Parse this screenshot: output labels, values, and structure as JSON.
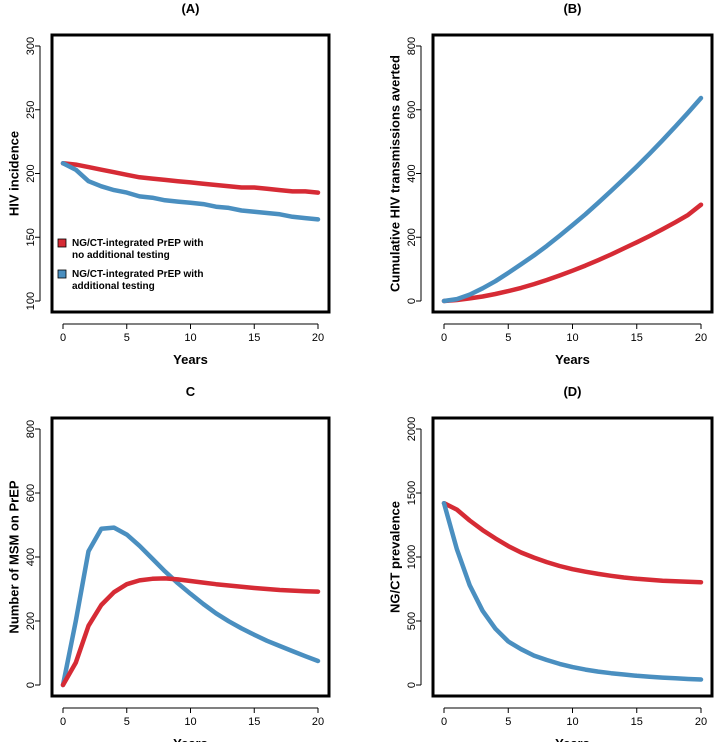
{
  "colors": {
    "red": "#d62b35",
    "blue": "#4a8fc0",
    "axis": "#000000"
  },
  "chart_data": [
    {
      "id": "A",
      "type": "line",
      "title": "(A)",
      "xlabel": "Years",
      "ylabel": "HIV incidence",
      "xlim": [
        0,
        20
      ],
      "ylim": [
        100,
        300
      ],
      "xticks": [
        0,
        5,
        10,
        15,
        20
      ],
      "yticks": [
        100,
        150,
        200,
        250,
        300
      ],
      "legend": {
        "placement": "bottom-left",
        "entries": [
          {
            "line1": "NG/CT-integrated PrEP with",
            "line2": "no additional testing",
            "color": "#d62b35"
          },
          {
            "line1": "NG/CT-integrated PrEP with",
            "line2": "additional testing",
            "color": "#4a8fc0"
          }
        ]
      },
      "series": [
        {
          "name": "NG/CT-integrated PrEP with no additional testing",
          "color": "#d62b35",
          "x": [
            0,
            1,
            2,
            3,
            4,
            5,
            6,
            7,
            8,
            9,
            10,
            11,
            12,
            13,
            14,
            15,
            16,
            17,
            18,
            19,
            20
          ],
          "values": [
            208,
            207,
            205,
            203,
            201,
            199,
            197,
            196,
            195,
            194,
            193,
            192,
            191,
            190,
            189,
            189,
            188,
            187,
            186,
            186,
            185
          ]
        },
        {
          "name": "NG/CT-integrated PrEP with additional testing",
          "color": "#4a8fc0",
          "x": [
            0,
            1,
            2,
            3,
            4,
            5,
            6,
            7,
            8,
            9,
            10,
            11,
            12,
            13,
            14,
            15,
            16,
            17,
            18,
            19,
            20
          ],
          "values": [
            208,
            203,
            194,
            190,
            187,
            185,
            182,
            181,
            179,
            178,
            177,
            176,
            174,
            173,
            171,
            170,
            169,
            168,
            166,
            165,
            164
          ]
        }
      ]
    },
    {
      "id": "B",
      "type": "line",
      "title": "(B)",
      "xlabel": "Years",
      "ylabel": "Cumulative HIV transmissions averted",
      "xlim": [
        0,
        20
      ],
      "ylim": [
        0,
        800
      ],
      "xticks": [
        0,
        5,
        10,
        15,
        20
      ],
      "yticks": [
        0,
        200,
        400,
        600,
        800
      ],
      "series": [
        {
          "name": "NG/CT-integrated PrEP with no additional testing",
          "color": "#d62b35",
          "x": [
            0,
            1,
            2,
            3,
            4,
            5,
            6,
            7,
            8,
            9,
            10,
            11,
            12,
            13,
            14,
            15,
            16,
            17,
            18,
            19,
            20
          ],
          "values": [
            0,
            3,
            8,
            14,
            22,
            31,
            41,
            53,
            66,
            80,
            95,
            111,
            128,
            146,
            165,
            184,
            204,
            225,
            247,
            270,
            302
          ]
        },
        {
          "name": "NG/CT-integrated PrEP with additional testing",
          "color": "#4a8fc0",
          "x": [
            0,
            1,
            2,
            3,
            4,
            5,
            6,
            7,
            8,
            9,
            10,
            11,
            12,
            13,
            14,
            15,
            16,
            17,
            18,
            19,
            20
          ],
          "values": [
            0,
            6,
            20,
            40,
            62,
            88,
            115,
            143,
            173,
            205,
            238,
            272,
            308,
            345,
            383,
            422,
            462,
            504,
            547,
            591,
            637
          ]
        }
      ]
    },
    {
      "id": "C",
      "type": "line",
      "title": "C",
      "xlabel": "Years",
      "ylabel": "Number of MSM on PrEP",
      "xlim": [
        0,
        20
      ],
      "ylim": [
        0,
        800
      ],
      "xticks": [
        0,
        5,
        10,
        15,
        20
      ],
      "yticks": [
        0,
        200,
        400,
        600,
        800
      ],
      "series": [
        {
          "name": "NG/CT-integrated PrEP with no additional testing",
          "color": "#d62b35",
          "x": [
            0,
            1,
            2,
            3,
            4,
            5,
            6,
            7,
            8,
            9,
            10,
            11,
            12,
            13,
            14,
            15,
            16,
            17,
            18,
            19,
            20
          ],
          "values": [
            0,
            70,
            185,
            250,
            290,
            315,
            327,
            332,
            333,
            330,
            325,
            320,
            315,
            311,
            307,
            303,
            300,
            297,
            295,
            293,
            292
          ]
        },
        {
          "name": "NG/CT-integrated PrEP with additional testing",
          "color": "#4a8fc0",
          "x": [
            0,
            1,
            2,
            3,
            4,
            5,
            6,
            7,
            8,
            9,
            10,
            11,
            12,
            13,
            14,
            15,
            16,
            17,
            18,
            19,
            20
          ],
          "values": [
            0,
            200,
            418,
            488,
            492,
            470,
            435,
            395,
            355,
            318,
            285,
            253,
            224,
            199,
            177,
            157,
            138,
            122,
            106,
            90,
            75
          ]
        }
      ]
    },
    {
      "id": "D",
      "type": "line",
      "title": "(D)",
      "xlabel": "Years",
      "ylabel": "NG/CT prevalence",
      "xlim": [
        0,
        20
      ],
      "ylim": [
        0,
        2000
      ],
      "xticks": [
        0,
        5,
        10,
        15,
        20
      ],
      "yticks": [
        0,
        500,
        1000,
        1500,
        2000
      ],
      "series": [
        {
          "name": "NG/CT-integrated PrEP with no additional testing",
          "color": "#d62b35",
          "x": [
            0,
            1,
            2,
            3,
            4,
            5,
            6,
            7,
            8,
            9,
            10,
            11,
            12,
            13,
            14,
            15,
            16,
            17,
            18,
            19,
            20
          ],
          "values": [
            1420,
            1370,
            1285,
            1210,
            1145,
            1085,
            1035,
            995,
            960,
            930,
            905,
            885,
            868,
            853,
            840,
            830,
            822,
            815,
            810,
            806,
            803
          ]
        },
        {
          "name": "NG/CT-integrated PrEP with additional testing",
          "color": "#4a8fc0",
          "x": [
            0,
            1,
            2,
            3,
            4,
            5,
            6,
            7,
            8,
            9,
            10,
            11,
            12,
            13,
            14,
            15,
            16,
            17,
            18,
            19,
            20
          ],
          "values": [
            1420,
            1060,
            780,
            580,
            440,
            340,
            280,
            230,
            195,
            165,
            140,
            120,
            105,
            92,
            82,
            72,
            65,
            58,
            52,
            47,
            43
          ]
        }
      ]
    }
  ]
}
